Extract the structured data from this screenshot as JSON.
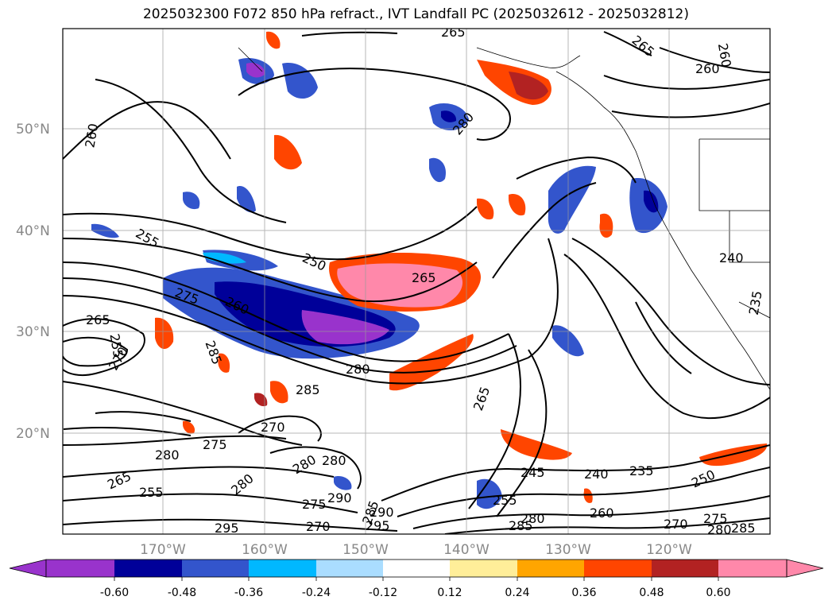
{
  "title": "2025032300 F072 850 hPa refract., IVT Landfall PC (2025032612 - 2025032812)",
  "lat_labels": [
    "50°N",
    "40°N",
    "30°N",
    "20°N"
  ],
  "lon_labels": [
    "170°W",
    "160°W",
    "150°W",
    "140°W",
    "130°W",
    "120°W"
  ],
  "colorbar": {
    "colors": [
      "#9933cc",
      "#000099",
      "#3355cc",
      "#00b8ff",
      "#aaddff",
      "#ffffff",
      "#ffee99",
      "#ffa500",
      "#ff4500",
      "#b22222",
      "#ff88aa"
    ],
    "tick_labels": [
      "-0.60",
      "-0.48",
      "-0.36",
      "-0.24",
      "-0.12",
      "0.12",
      "0.24",
      "0.36",
      "0.48",
      "0.60"
    ]
  },
  "contour_labels": [
    {
      "text": "265"
    },
    {
      "text": "265"
    },
    {
      "text": "260"
    },
    {
      "text": "260"
    },
    {
      "text": "255"
    },
    {
      "text": "250"
    },
    {
      "text": "265"
    },
    {
      "text": "275"
    },
    {
      "text": "260"
    },
    {
      "text": "265"
    },
    {
      "text": "255"
    },
    {
      "text": "270"
    },
    {
      "text": "285"
    },
    {
      "text": "280"
    },
    {
      "text": "285"
    },
    {
      "text": "270"
    },
    {
      "text": "275"
    },
    {
      "text": "280"
    },
    {
      "text": "280"
    },
    {
      "text": "280"
    },
    {
      "text": "265"
    },
    {
      "text": "255"
    },
    {
      "text": "280"
    },
    {
      "text": "275"
    },
    {
      "text": "290"
    },
    {
      "text": "285"
    },
    {
      "text": "290"
    },
    {
      "text": "295"
    },
    {
      "text": "270"
    },
    {
      "text": "295"
    },
    {
      "text": "285"
    },
    {
      "text": "280"
    },
    {
      "text": "255"
    },
    {
      "text": "245"
    },
    {
      "text": "240"
    },
    {
      "text": "235"
    },
    {
      "text": "250"
    },
    {
      "text": "260"
    },
    {
      "text": "270"
    },
    {
      "text": "275"
    },
    {
      "text": "280"
    },
    {
      "text": "285"
    },
    {
      "text": "265"
    },
    {
      "text": "240"
    },
    {
      "text": "235"
    },
    {
      "text": "260"
    },
    {
      "text": "280"
    }
  ]
}
